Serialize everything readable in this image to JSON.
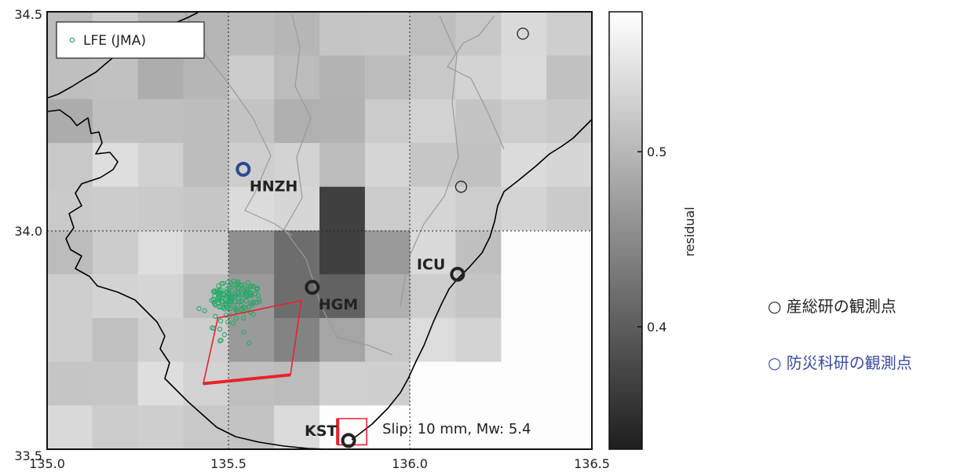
{
  "map": {
    "lon_range": [
      135.0,
      136.5
    ],
    "lat_range": [
      33.5,
      34.5
    ],
    "x_ticks": [
      "135.0",
      "135.5",
      "136.0",
      "136.5"
    ],
    "y_ticks": [
      "33.5",
      "34.0",
      "34.5"
    ],
    "legend_label": "LFE (JMA)",
    "annotation": "Slip: 10 mm, Mw: 5.4",
    "stations": [
      {
        "code": "HNZH",
        "lon": 135.54,
        "lat": 34.14,
        "color": "#2b4a8f"
      },
      {
        "code": "HGM",
        "lon": 135.73,
        "lat": 33.87,
        "color": "#222222"
      },
      {
        "code": "ICU",
        "lon": 136.13,
        "lat": 33.9,
        "color": "#222222"
      },
      {
        "code": "KST",
        "lon": 135.83,
        "lat": 33.52,
        "color": "#222222"
      }
    ],
    "unlabeled_stations": [
      {
        "lon": 136.31,
        "lat": 34.45
      },
      {
        "lon": 136.14,
        "lat": 34.1
      }
    ],
    "fault_main_corners": [
      [
        135.47,
        33.8
      ],
      [
        135.7,
        33.84
      ],
      [
        135.67,
        33.67
      ],
      [
        135.43,
        33.65
      ]
    ],
    "fault_small_corners": [
      [
        135.8,
        33.57
      ],
      [
        135.88,
        33.57
      ],
      [
        135.88,
        33.51
      ],
      [
        135.8,
        33.51
      ]
    ],
    "lfe_cluster": {
      "lon_center": 135.52,
      "lat_center": 33.85,
      "lon_spread": 0.07,
      "lat_spread": 0.035
    },
    "coast_color": "#000000",
    "fault_color": "#e8222a",
    "lfe_color": "#2aa86b"
  },
  "colorbar": {
    "label": "residual",
    "ticks": [
      "0.5",
      "0.4"
    ],
    "tick_values": [
      0.5,
      0.4
    ],
    "range": [
      0.33,
      0.58
    ]
  },
  "notes": {
    "aist": "○ 産総研の観測点",
    "nied": "○ 防災科研の観測点"
  }
}
